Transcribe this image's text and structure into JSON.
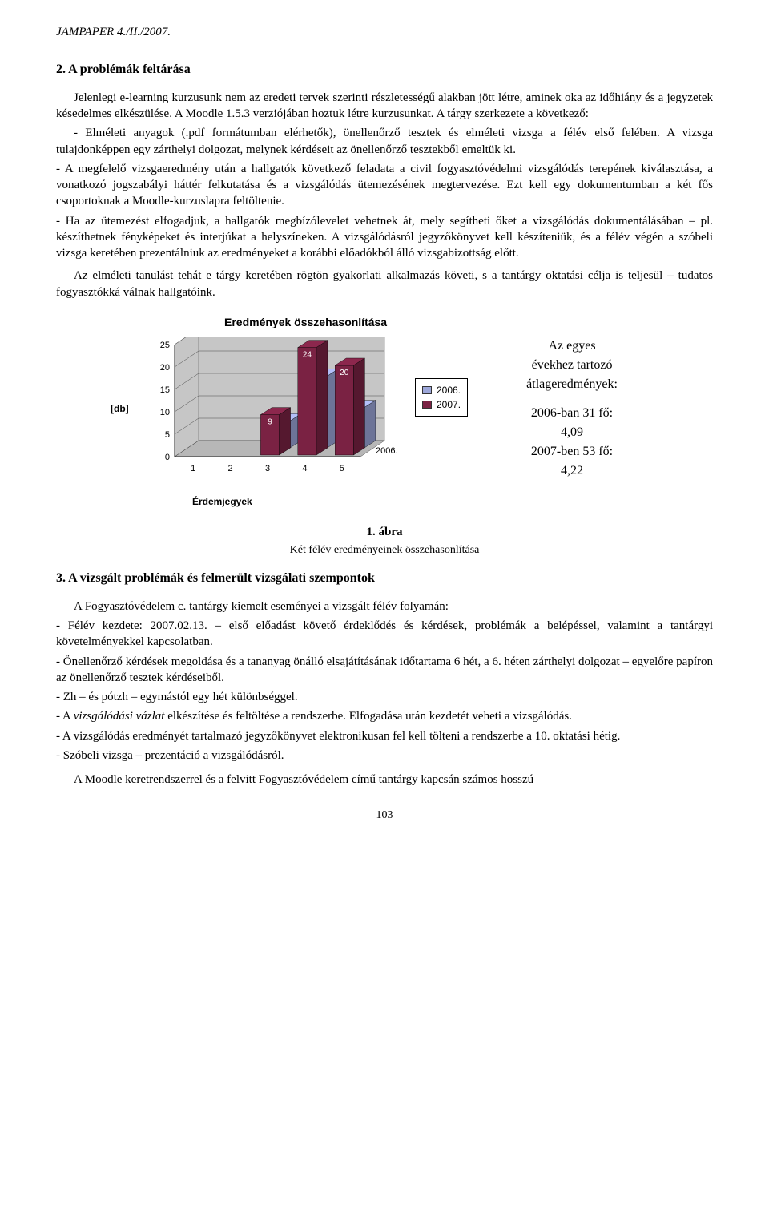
{
  "header": {
    "journal": "JAMPAPER 4./II./2007."
  },
  "section2": {
    "heading": "2.  A problémák feltárása",
    "p1": "Jelenlegi e-learning kurzusunk nem az eredeti tervek szerinti részletességű alakban jött létre, aminek oka az időhiány és a jegyzetek késedelmes elkészülése. A Moodle 1.5.3 verziójában hoztuk létre kurzusunkat. A tárgy szerkezete a következő:",
    "p2": "- Elméleti anyagok (.pdf formátumban elérhetők), önellenőrző tesztek és elméleti vizsga a félév első felében. A vizsga tulajdonképpen egy zárthelyi dolgozat, melynek kérdéseit az önellenőrző tesztekből emeltük ki.",
    "p3": "- A megfelelő vizsgaeredmény után a hallgatók következő feladata a civil fogyasztóvédelmi vizsgálódás terepének kiválasztása, a vonatkozó jogszabályi háttér felkutatása és a vizsgálódás ütemezésének megtervezése. Ezt kell egy dokumentumban a két fős csoportoknak a Moodle-kurzuslapra feltöltenie.",
    "p4": "- Ha az ütemezést elfogadjuk, a hallgatók megbízólevelet vehetnek át, mely segítheti őket a vizsgálódás dokumentálásában – pl. készíthetnek fényképeket és interjúkat a helyszíneken. A vizsgálódásról jegyzőkönyvet kell készíteniük, és a félév végén a szóbeli vizsga keretében prezentálniuk az eredményeket a korábbi előadókból álló vizsgabizottság előtt.",
    "p5": "Az elméleti tanulást tehát e tárgy keretében rögtön gyakorlati alkalmazás követi, s a tantárgy oktatási célja is teljesül – tudatos fogyasztókká válnak hallgatóink."
  },
  "chart": {
    "title": "Eredmények összehasonlítása",
    "type": "3d-bar",
    "y_label": "[db]",
    "x_label": "Érdemjegyek",
    "categories": [
      "1",
      "2",
      "3",
      "4",
      "5"
    ],
    "series": [
      {
        "name": "2006.",
        "color": "#9ca6d9",
        "values": [
          0,
          0,
          6,
          16,
          9
        ]
      },
      {
        "name": "2007.",
        "color": "#7a2243",
        "values": [
          0,
          0,
          9,
          24,
          20
        ]
      }
    ],
    "y_ticks": [
      0,
      5,
      10,
      15,
      20,
      25
    ],
    "depth_label": "2006.",
    "plot_bg": "#ffffff",
    "wall_bg": "#c6c6c6",
    "floor_bg": "#b7b7b7",
    "grid_color": "#4a4a4a",
    "label_fontsize": 11,
    "value_fontsize": 10
  },
  "side": {
    "l1": "Az egyes",
    "l2": "évekhez tartozó",
    "l3": "átlageredmények:",
    "l4": "2006-ban 31 fő:",
    "l5": "4,09",
    "l6": "2007-ben 53 fő:",
    "l7": "4,22"
  },
  "figure": {
    "num": "1. ábra",
    "sub": "Két félév eredményeinek összehasonlítása"
  },
  "section3": {
    "heading": "3.  A vizsgált problémák és felmerült vizsgálati szempontok",
    "p1": "A Fogyasztóvédelem c. tantárgy kiemelt eseményei a vizsgált félév folyamán:",
    "p2": "- Félév kezdete: 2007.02.13. – első előadást követő érdeklődés és kérdések, problémák a belépéssel, valamint a tantárgyi követelményekkel kapcsolatban.",
    "p3": "- Önellenőrző kérdések megoldása és a tananyag önálló elsajátításának időtartama 6 hét, a 6. héten zárthelyi dolgozat – egyelőre papíron az önellenőrző tesztek kérdéseiből.",
    "p4": "- Zh – és pótzh – egymástól egy hét különbséggel.",
    "p5a": "- A ",
    "p5b": "vizsgálódási vázlat",
    "p5c": " elkészítése és feltöltése a rendszerbe. Elfogadása után kezdetét veheti a vizsgálódás.",
    "p6": "- A vizsgálódás eredményét tartalmazó jegyzőkönyvet elektronikusan fel kell tölteni a rendszerbe a 10. oktatási hétig.",
    "p7": "- Szóbeli vizsga – prezentáció a vizsgálódásról.",
    "p8": "A Moodle keretrendszerrel és a felvitt Fogyasztóvédelem című tantárgy kapcsán számos hosszú"
  },
  "page_number": "103"
}
